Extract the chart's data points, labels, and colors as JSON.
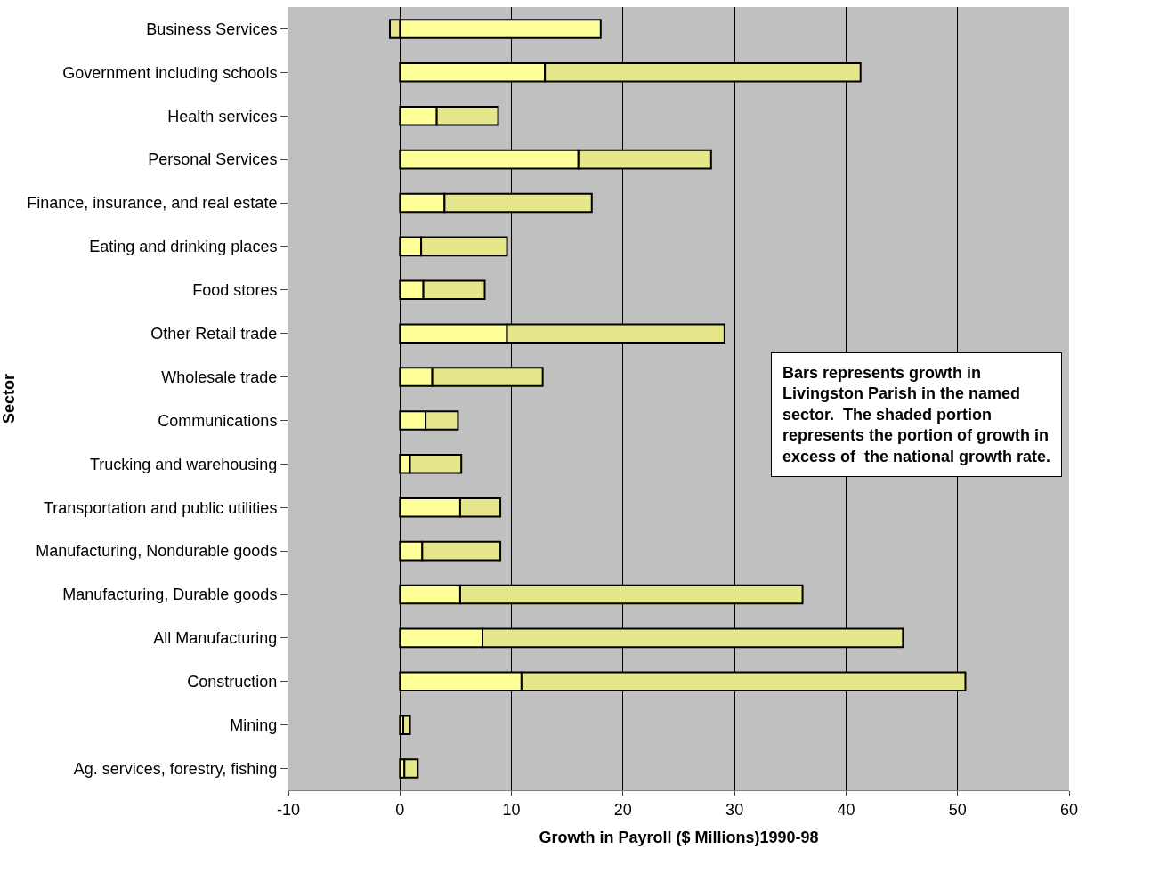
{
  "chart_data": {
    "type": "bar",
    "orientation": "horizontal",
    "stacked": true,
    "xlabel": "Growth in Payroll ($ Millions)1990-98",
    "ylabel": "Sector",
    "categories": [
      "Business Services",
      "Government including schools",
      "Health services",
      "Personal Services",
      "Finance, insurance, and real estate",
      "Eating and drinking places",
      "Food stores",
      "Other Retail trade",
      "Wholesale trade",
      "Communications",
      "Trucking and warehousing",
      "Transportation and public utilities",
      "Manufacturing, Nondurable goods",
      "Manufacturing, Durable goods",
      "All Manufacturing",
      "Construction",
      "Mining",
      "Ag. services, forestry, fishing"
    ],
    "series": [
      {
        "color": "#ffff99",
        "values": [
          18.0,
          13.0,
          3.3,
          16.0,
          4.0,
          1.9,
          2.1,
          9.6,
          2.9,
          2.3,
          0.9,
          5.4,
          2.0,
          5.4,
          7.4,
          10.9,
          0.3,
          0.4
        ]
      },
      {
        "color": "#e6e68a",
        "values": [
          -0.9,
          28.3,
          5.5,
          11.9,
          13.2,
          7.7,
          5.5,
          19.5,
          9.9,
          2.9,
          4.6,
          3.6,
          7.0,
          30.7,
          37.7,
          39.8,
          0.6,
          1.2
        ]
      }
    ],
    "xlim": [
      -10,
      60
    ],
    "xticks": [
      -10,
      0,
      10,
      20,
      30,
      40,
      50,
      60
    ],
    "grid": "x",
    "legend": false,
    "annotations": [
      "Bars represents growth in\nLivingston Parish in the named\nsector.  The shaded portion\nrepresents the portion of growth in\nexcess of  the national growth rate."
    ]
  }
}
